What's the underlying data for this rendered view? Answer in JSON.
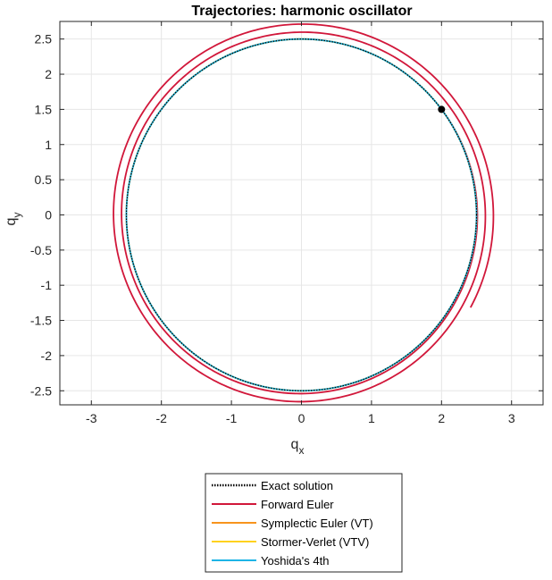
{
  "chart_data": {
    "type": "line",
    "title": "Trajectories: harmonic oscillator",
    "xlabel": "q",
    "xlabel_sub": "x",
    "ylabel": "q",
    "ylabel_sub": "y",
    "xlim": [
      -3.45,
      3.45
    ],
    "ylim": [
      -2.7,
      2.75
    ],
    "xticks": [
      -3,
      -2,
      -1,
      0,
      1,
      2,
      3
    ],
    "yticks": [
      -2.5,
      -2,
      -1.5,
      -1,
      -0.5,
      0,
      0.5,
      1,
      1.5,
      2,
      2.5
    ],
    "grid": true,
    "legend_position": "bottom-outside",
    "initial_point": {
      "x": 2.0,
      "y": 1.5
    },
    "series": [
      {
        "name": "Exact solution",
        "color": "#000000",
        "style": "dotted",
        "kind": "circle",
        "radius": 2.5
      },
      {
        "name": "Forward Euler",
        "color": "#d1173a",
        "style": "solid",
        "kind": "spiral",
        "r_start": 2.5,
        "r_end": 2.75,
        "start_point": [
          2.0,
          1.5
        ],
        "end_point": [
          2.42,
          -1.32
        ],
        "turns": 2.9
      },
      {
        "name": "Symplectic Euler (VT)",
        "color": "#f7941d",
        "style": "solid",
        "kind": "circle",
        "radius": 2.5
      },
      {
        "name": "Stormer-Verlet (VTV)",
        "color": "#ffd21e",
        "style": "solid",
        "kind": "circle",
        "radius": 2.5
      },
      {
        "name": "Yoshida's 4th",
        "color": "#1eb4e6",
        "style": "solid",
        "kind": "circle",
        "radius": 2.5
      }
    ]
  }
}
